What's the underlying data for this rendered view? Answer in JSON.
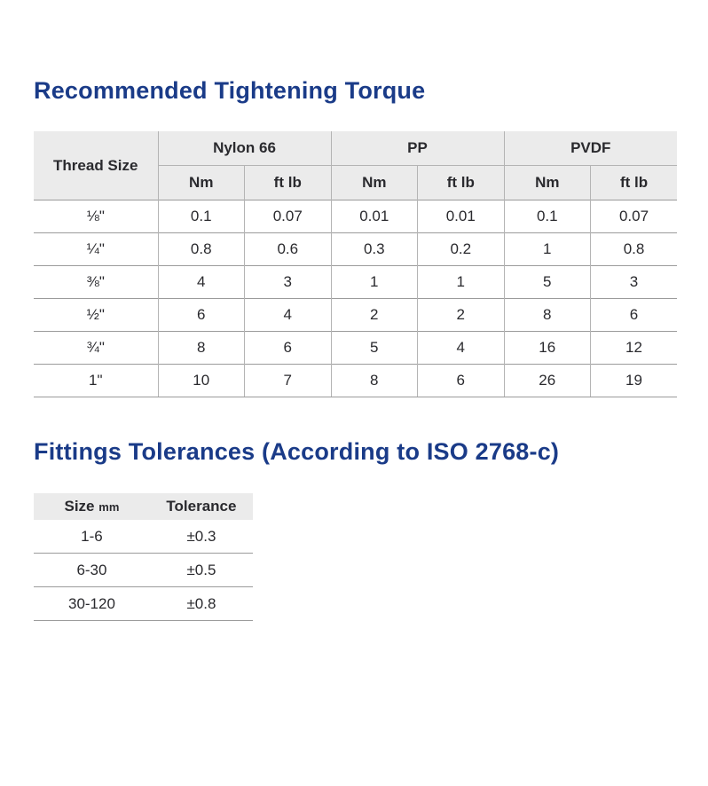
{
  "colors": {
    "title": "#1a3b88",
    "text": "#2a2a2e",
    "header_bg": "#ebebeb",
    "grid_line": "#9b9b9b"
  },
  "torque_section": {
    "title": "Recommended Tightening Torque",
    "table": {
      "corner_header": "Thread Size",
      "material_groups": [
        "Nylon 66",
        "PP",
        "PVDF"
      ],
      "unit_headers": [
        "Nm",
        "ft lb"
      ],
      "rows": [
        {
          "thread_size": "⅛\"",
          "values": [
            "0.1",
            "0.07",
            "0.01",
            "0.01",
            "0.1",
            "0.07"
          ]
        },
        {
          "thread_size": "¼\"",
          "values": [
            "0.8",
            "0.6",
            "0.3",
            "0.2",
            "1",
            "0.8"
          ]
        },
        {
          "thread_size": "⅜\"",
          "values": [
            "4",
            "3",
            "1",
            "1",
            "5",
            "3"
          ]
        },
        {
          "thread_size": "½\"",
          "values": [
            "6",
            "4",
            "2",
            "2",
            "8",
            "6"
          ]
        },
        {
          "thread_size": "¾\"",
          "values": [
            "8",
            "6",
            "5",
            "4",
            "16",
            "12"
          ]
        },
        {
          "thread_size": "1\"",
          "values": [
            "10",
            "7",
            "8",
            "6",
            "26",
            "19"
          ]
        }
      ]
    }
  },
  "tolerances_section": {
    "title": "Fittings Tolerances (According to ISO 2768-c)",
    "table": {
      "size_header": "Size",
      "size_unit": "mm",
      "tolerance_header": "Tolerance",
      "rows": [
        {
          "size": "1-6",
          "tolerance": "±0.3"
        },
        {
          "size": "6-30",
          "tolerance": "±0.5"
        },
        {
          "size": "30-120",
          "tolerance": "±0.8"
        }
      ]
    }
  }
}
